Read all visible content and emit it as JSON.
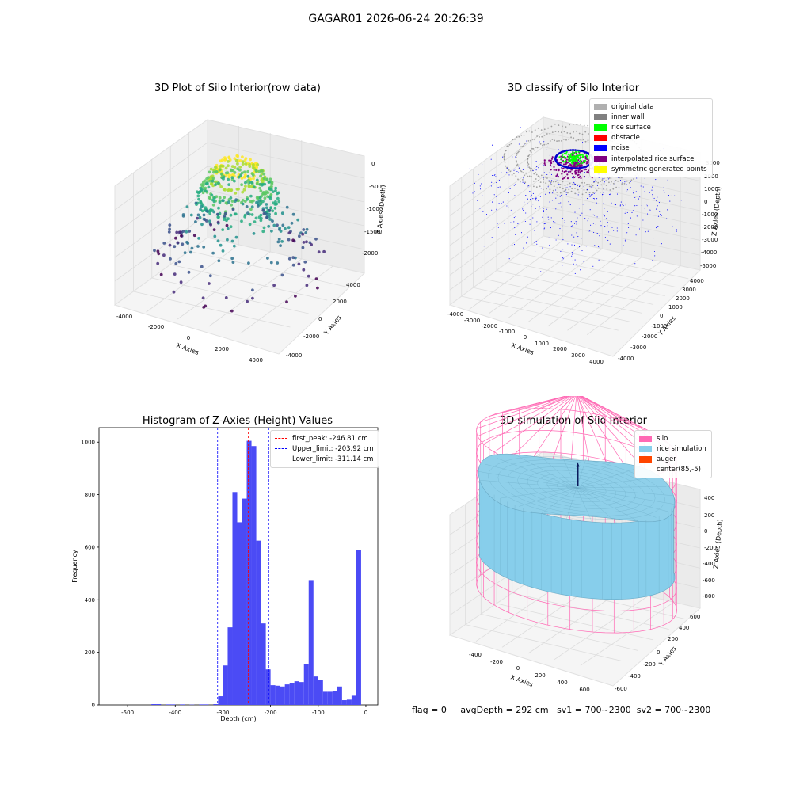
{
  "figure": {
    "title": "GAGAR01 2026-06-24 20:26:39"
  },
  "chart_data": [
    {
      "type": "scatter",
      "panel": "top-left",
      "title": "3D Plot of Silo Interior(row data)",
      "xlabel": "X Axies",
      "ylabel": "Y Axies",
      "zlabel": "Z Axies (Depth)",
      "xticks": [
        "-4000",
        "-2000",
        "0",
        "2000",
        "4000"
      ],
      "yticks": [
        "-4000",
        "-2000",
        "0",
        "2000",
        "4000"
      ],
      "zticks": [
        "0",
        "-500",
        "-1000",
        "-1500",
        "-2000"
      ],
      "xlim": [
        -4500,
        4500
      ],
      "ylim": [
        -4500,
        4500
      ],
      "zlim": [
        -2200,
        0
      ],
      "colormap": "viridis",
      "grid": true
    },
    {
      "type": "scatter",
      "panel": "top-right",
      "title": "3D classify of Silo Interior",
      "xlabel": "X Axies",
      "ylabel": "Y Axies",
      "zlabel": "Z Axies (Depth)",
      "xticks": [
        "-4000",
        "-3000",
        "-2000",
        "-1000",
        "0",
        "1000",
        "2000",
        "3000",
        "4000"
      ],
      "yticks": [
        "-4000",
        "-3000",
        "-2000",
        "-1000",
        "0",
        "1000",
        "2000",
        "3000",
        "4000"
      ],
      "zticks": [
        "3000",
        "2000",
        "1000",
        "0",
        "-1000",
        "-2000",
        "-3000",
        "-4000",
        "-5000"
      ],
      "legend_position": "top-right",
      "legend": [
        {
          "label": "original data",
          "color": "#b0b0b0"
        },
        {
          "label": "inner wall",
          "color": "#808080"
        },
        {
          "label": "rice surface",
          "color": "#00ff00"
        },
        {
          "label": "obstacle",
          "color": "#ff0000"
        },
        {
          "label": "noise",
          "color": "#0000ff"
        },
        {
          "label": "interpolated rice surface",
          "color": "#800080"
        },
        {
          "label": "symmetric generated points",
          "color": "#ffff00"
        }
      ],
      "grid": true
    },
    {
      "type": "bar",
      "panel": "bottom-left",
      "title": "Histogram of Z-Axies (Height) Values",
      "xlabel": "Depth (cm)",
      "ylabel": "Frequency",
      "xlim": [
        -560,
        25
      ],
      "ylim": [
        0,
        1055
      ],
      "xticks": [
        -500,
        -400,
        -300,
        -200,
        -100,
        0
      ],
      "yticks": [
        0,
        200,
        400,
        600,
        800,
        1000
      ],
      "bin_width": 10,
      "bar_color": "#4b4bf5",
      "bins_left": [
        -450,
        -440,
        -420,
        -410,
        -390,
        -370,
        -350,
        -340,
        -320,
        -310,
        -300,
        -290,
        -280,
        -270,
        -260,
        -250,
        -240,
        -230,
        -220,
        -210,
        -200,
        -190,
        -180,
        -170,
        -160,
        -150,
        -140,
        -130,
        -120,
        -110,
        -100,
        -90,
        -80,
        -70,
        -60,
        -50,
        -40,
        -30,
        -20,
        -10
      ],
      "values": [
        3,
        3,
        2,
        2,
        2,
        1,
        2,
        2,
        3,
        33,
        150,
        295,
        810,
        695,
        785,
        1005,
        985,
        625,
        310,
        135,
        75,
        73,
        70,
        78,
        82,
        90,
        87,
        155,
        475,
        108,
        95,
        50,
        50,
        52,
        70,
        18,
        20,
        35,
        590,
        0
      ],
      "vlines": [
        {
          "label": "first_peak: -246.81 cm",
          "x": -246.81,
          "color": "#ff0000"
        },
        {
          "label": "Upper_limit: -203.92 cm",
          "x": -203.92,
          "color": "#0000ff"
        },
        {
          "label": "Lower_limit: -311.14 cm",
          "x": -311.14,
          "color": "#0000ff"
        }
      ],
      "legend_position": "top-right"
    },
    {
      "type": "surface",
      "panel": "bottom-right",
      "title": "3D simulation of Silo Interior",
      "xlabel": "X Axies",
      "ylabel": "Y Axies",
      "zlabel": "Z Axies (Depth)",
      "xticks": [
        "-400",
        "-200",
        "0",
        "200",
        "400",
        "600"
      ],
      "yticks": [
        "-600",
        "-400",
        "-200",
        "0",
        "200",
        "400",
        "600"
      ],
      "zticks": [
        "400",
        "200",
        "0",
        "-200",
        "-400",
        "-600",
        "-800"
      ],
      "legend_position": "top-right",
      "legend": [
        {
          "label": "silo",
          "color": "#ff69b4"
        },
        {
          "label": "rice simulation",
          "color": "#87ceeb"
        },
        {
          "label": "auger",
          "color": "#ff4500"
        },
        {
          "label": "center(85,-5)",
          "color": ""
        }
      ],
      "grid": true
    }
  ],
  "footer": {
    "flag": "flag = 0",
    "avg_depth": "avgDepth = 292 cm",
    "sv1": "sv1 = 700~2300",
    "sv2": "sv2 = 700~2300"
  }
}
